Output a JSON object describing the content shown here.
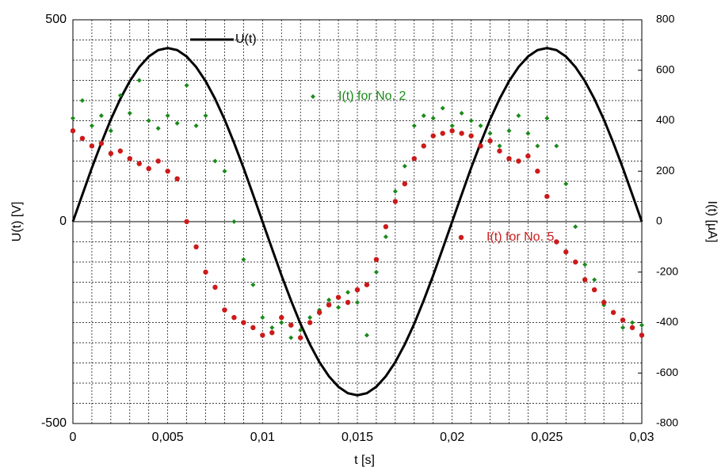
{
  "chart_data": {
    "type": "scatter",
    "xlabel": "t  [s]",
    "ylabel": "U(t)  [V]",
    "y2label": "I(t)  [µA]",
    "xlim": [
      0,
      0.03
    ],
    "xticks": [
      0,
      {
        "value": 0.005,
        "label": "0,005"
      },
      {
        "value": 0.01,
        "label": "0,01"
      },
      {
        "value": 0.015,
        "label": "0,015"
      },
      {
        "value": 0.02,
        "label": "0,02"
      },
      {
        "value": 0.025,
        "label": "0,025"
      },
      {
        "value": 0.03,
        "label": "0,03"
      }
    ],
    "ylim": [
      -500,
      500
    ],
    "yticks": [
      -500,
      0,
      500
    ],
    "y2lim": [
      -800,
      800
    ],
    "y2ticks": [
      -800,
      -600,
      -400,
      -200,
      0,
      200,
      400,
      600,
      800
    ],
    "grid": true,
    "x": [
      0,
      0.0005,
      0.001,
      0.0015,
      0.002,
      0.0025,
      0.003,
      0.0035,
      0.004,
      0.0045,
      0.005,
      0.0055,
      0.006,
      0.0065,
      0.007,
      0.0075,
      0.008,
      0.0085,
      0.009,
      0.0095,
      0.01,
      0.0105,
      0.011,
      0.0115,
      0.012,
      0.0125,
      0.013,
      0.0135,
      0.014,
      0.0145,
      0.015,
      0.0155,
      0.016,
      0.0165,
      0.017,
      0.0175,
      0.018,
      0.0185,
      0.019,
      0.0195,
      0.02,
      0.0205,
      0.021,
      0.0215,
      0.022,
      0.0225,
      0.023,
      0.0235,
      0.024,
      0.0245,
      0.025,
      0.0255,
      0.026,
      0.0265,
      0.027,
      0.0275,
      0.028,
      0.0285,
      0.029,
      0.0295,
      0.03
    ],
    "series": [
      {
        "name": "U(t)",
        "color": "#000000",
        "kind": "line",
        "values": [
          0,
          67,
          133,
          195,
          253,
          304,
          348,
          383,
          409,
          425,
          430,
          425,
          409,
          383,
          348,
          304,
          253,
          195,
          133,
          67,
          0,
          -67,
          -133,
          -195,
          -253,
          -304,
          -348,
          -383,
          -409,
          -425,
          -430,
          -425,
          -409,
          -383,
          -348,
          -304,
          -253,
          -195,
          -133,
          -67,
          0,
          67,
          133,
          195,
          253,
          304,
          348,
          383,
          409,
          425,
          430,
          425,
          409,
          383,
          348,
          304,
          253,
          195,
          133,
          67,
          0
        ]
      },
      {
        "name": "I(t) for No. 2",
        "color": "#1a8a1a",
        "kind": "diamond",
        "axis": "y2",
        "values": [
          410,
          480,
          380,
          420,
          360,
          500,
          430,
          560,
          400,
          370,
          420,
          390,
          540,
          380,
          420,
          240,
          200,
          0,
          -150,
          -250,
          -380,
          -420,
          -400,
          -460,
          -430,
          -380,
          -350,
          -310,
          -340,
          -280,
          -320,
          -450,
          -200,
          -60,
          120,
          220,
          380,
          420,
          410,
          450,
          380,
          430,
          400,
          380,
          350,
          300,
          360,
          420,
          350,
          300,
          410,
          300,
          150,
          -20,
          -170,
          -230,
          -330,
          -360,
          -420,
          -400,
          -410
        ]
      },
      {
        "name": "I(t) for No. 5",
        "color": "#cc1a1a",
        "kind": "circle",
        "axis": "y2",
        "values": [
          360,
          330,
          300,
          310,
          270,
          280,
          250,
          230,
          210,
          240,
          200,
          170,
          0,
          -100,
          -200,
          -260,
          -350,
          -380,
          -400,
          -420,
          -450,
          -440,
          -380,
          -410,
          -460,
          -400,
          -360,
          -330,
          -300,
          -320,
          -270,
          -250,
          -150,
          -20,
          80,
          150,
          250,
          300,
          340,
          350,
          360,
          350,
          340,
          300,
          320,
          280,
          250,
          240,
          260,
          200,
          100,
          -80,
          -120,
          -160,
          -230,
          -270,
          -320,
          -360,
          -390,
          -420,
          -450
        ]
      }
    ]
  }
}
